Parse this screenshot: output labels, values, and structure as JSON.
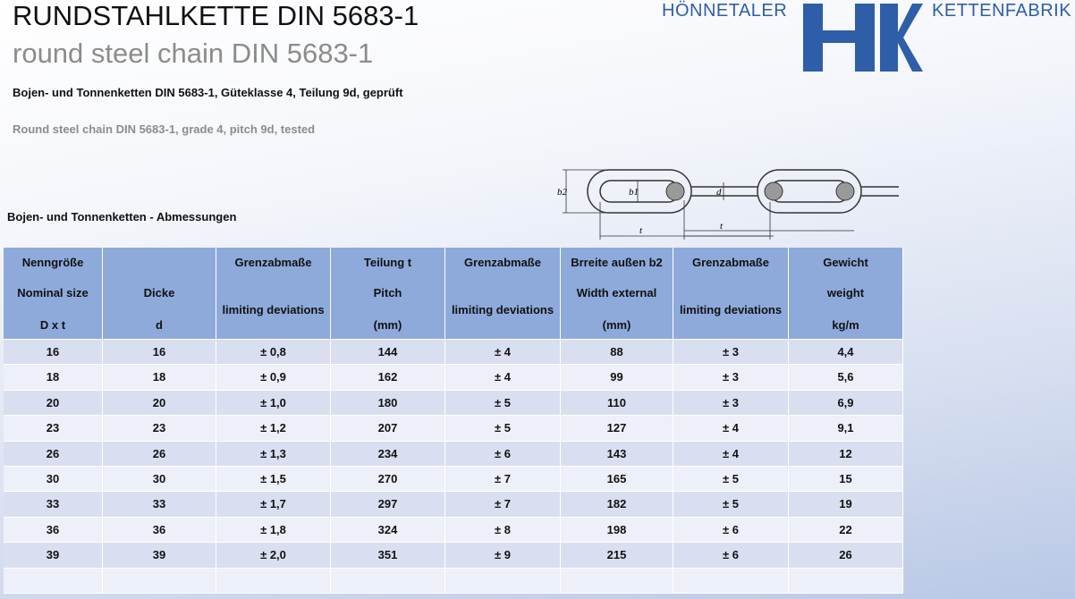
{
  "header": {
    "title": "RUNDSTAHLKETTE DIN 5683-1",
    "subtitle": "round steel chain DIN 5683-1",
    "description_de": "Bojen- und Tonnenketten DIN 5683-1, Güteklasse 4, Teilung 9d, geprüft",
    "description_en": "Round steel chain DIN 5683-1, grade 4, pitch 9d, tested"
  },
  "logo": {
    "left": "HÖNNETALER",
    "right": "KETTENFABRIK"
  },
  "diagram": {
    "labels": [
      "b2",
      "b1",
      "d",
      "t",
      "t"
    ]
  },
  "table": {
    "caption": "Bojen- und Tonnenketten - Abmessungen",
    "columns": [
      [
        "Nenngröße",
        "Nominal size",
        "D x t"
      ],
      [
        "Dicke",
        "d"
      ],
      [
        "Grenzabmaße",
        "limiting deviations"
      ],
      [
        "Teilung t",
        "Pitch",
        "(mm)"
      ],
      [
        "Grenzabmaße",
        "limiting deviations"
      ],
      [
        "Brreite außen b2",
        "Width external",
        "(mm)"
      ],
      [
        "Grenzabmaße",
        "limiting deviations"
      ],
      [
        "Gewicht",
        "weight",
        "kg/m"
      ]
    ],
    "rows": [
      [
        "16",
        "16",
        "± 0,8",
        "144",
        "± 4",
        "88",
        "± 3",
        "4,4"
      ],
      [
        "18",
        "18",
        "± 0,9",
        "162",
        "± 4",
        "99",
        "± 3",
        "5,6"
      ],
      [
        "20",
        "20",
        "± 1,0",
        "180",
        "± 5",
        "110",
        "± 3",
        "6,9"
      ],
      [
        "23",
        "23",
        "± 1,2",
        "207",
        "± 5",
        "127",
        "± 4",
        "9,1"
      ],
      [
        "26",
        "26",
        "± 1,3",
        "234",
        "± 6",
        "143",
        "± 4",
        "12"
      ],
      [
        "30",
        "30",
        "± 1,5",
        "270",
        "± 7",
        "165",
        "± 5",
        "15"
      ],
      [
        "33",
        "33",
        "± 1,7",
        "297",
        "± 7",
        "182",
        "± 5",
        "19"
      ],
      [
        "36",
        "36",
        "± 1,8",
        "324",
        "± 8",
        "198",
        "± 6",
        "22"
      ],
      [
        "39",
        "39",
        "± 2,0",
        "351",
        "± 9",
        "215",
        "± 6",
        "26"
      ]
    ]
  }
}
